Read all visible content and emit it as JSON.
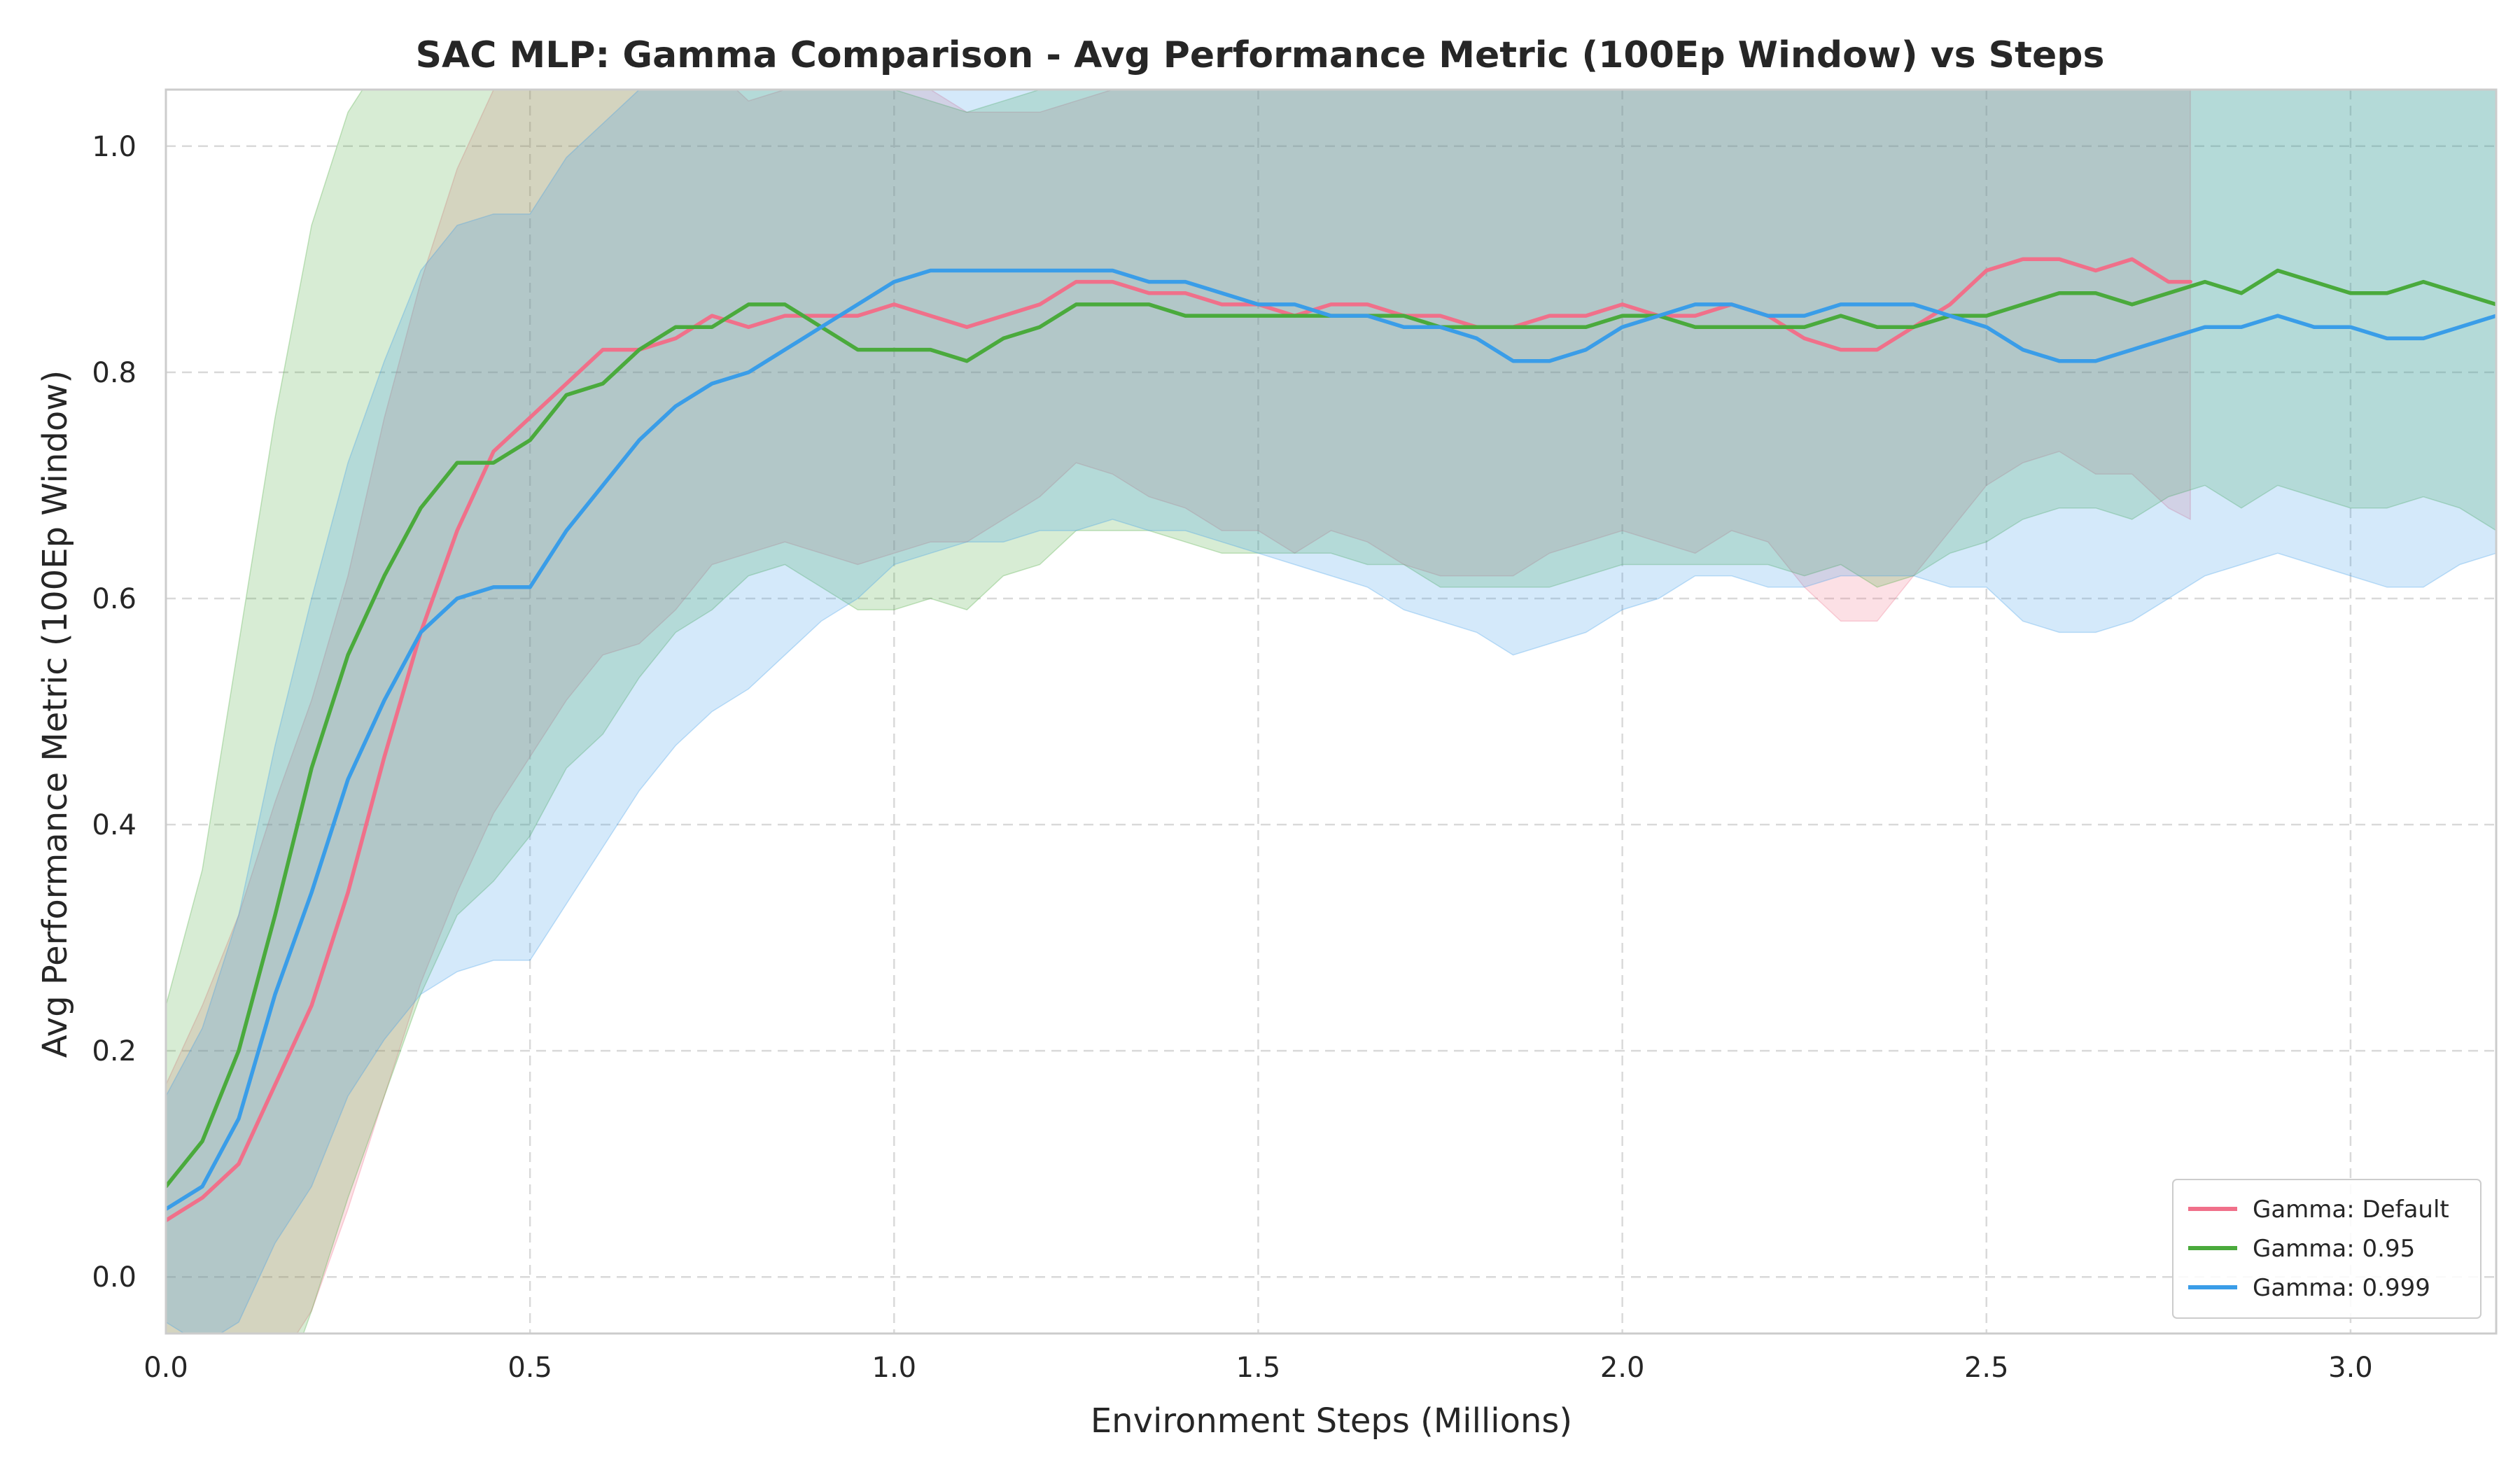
{
  "chart_data": {
    "type": "line",
    "title": "SAC MLP: Gamma Comparison - Avg Performance Metric (100Ep Window) vs Steps",
    "xlabel": "Environment Steps (Millions)",
    "ylabel": "Avg Performance Metric (100Ep Window)",
    "xlim": [
      0.0,
      3.2
    ],
    "ylim": [
      -0.05,
      1.05
    ],
    "xticks": [
      "0.0",
      "0.5",
      "1.0",
      "1.5",
      "2.0",
      "2.5",
      "3.0"
    ],
    "yticks": [
      "0.0",
      "0.2",
      "0.4",
      "0.6",
      "0.8",
      "1.0"
    ],
    "grid": true,
    "legend_position": "bottom-right",
    "series": [
      {
        "name": "Gamma: Default",
        "color": "#f0708a",
        "x": [
          0.0,
          0.05,
          0.1,
          0.15,
          0.2,
          0.25,
          0.3,
          0.35,
          0.4,
          0.45,
          0.5,
          0.55,
          0.6,
          0.65,
          0.7,
          0.75,
          0.8,
          0.85,
          0.9,
          0.95,
          1.0,
          1.05,
          1.1,
          1.15,
          1.2,
          1.25,
          1.3,
          1.35,
          1.4,
          1.45,
          1.5,
          1.55,
          1.6,
          1.65,
          1.7,
          1.75,
          1.8,
          1.85,
          1.9,
          1.95,
          2.0,
          2.05,
          2.1,
          2.15,
          2.2,
          2.25,
          2.3,
          2.35,
          2.4,
          2.45,
          2.5,
          2.55,
          2.6,
          2.65,
          2.7,
          2.75,
          2.78
        ],
        "y": [
          0.05,
          0.07,
          0.1,
          0.17,
          0.24,
          0.34,
          0.46,
          0.57,
          0.66,
          0.73,
          0.76,
          0.79,
          0.82,
          0.82,
          0.83,
          0.85,
          0.84,
          0.85,
          0.85,
          0.85,
          0.86,
          0.85,
          0.84,
          0.85,
          0.86,
          0.88,
          0.88,
          0.87,
          0.87,
          0.86,
          0.86,
          0.85,
          0.86,
          0.86,
          0.85,
          0.85,
          0.84,
          0.84,
          0.85,
          0.85,
          0.86,
          0.85,
          0.85,
          0.86,
          0.85,
          0.83,
          0.82,
          0.82,
          0.84,
          0.86,
          0.89,
          0.9,
          0.9,
          0.89,
          0.9,
          0.88,
          0.88
        ],
        "std": [
          0.12,
          0.17,
          0.22,
          0.25,
          0.27,
          0.28,
          0.3,
          0.31,
          0.32,
          0.32,
          0.3,
          0.28,
          0.27,
          0.26,
          0.24,
          0.22,
          0.2,
          0.2,
          0.21,
          0.22,
          0.22,
          0.2,
          0.19,
          0.18,
          0.17,
          0.16,
          0.17,
          0.18,
          0.19,
          0.2,
          0.2,
          0.21,
          0.2,
          0.21,
          0.22,
          0.23,
          0.22,
          0.22,
          0.21,
          0.2,
          0.2,
          0.2,
          0.21,
          0.2,
          0.2,
          0.22,
          0.24,
          0.24,
          0.22,
          0.2,
          0.19,
          0.18,
          0.17,
          0.18,
          0.19,
          0.2,
          0.21
        ]
      },
      {
        "name": "Gamma: 0.95",
        "color": "#4aaa3c",
        "x": [
          0.0,
          0.05,
          0.1,
          0.15,
          0.2,
          0.25,
          0.3,
          0.35,
          0.4,
          0.45,
          0.5,
          0.55,
          0.6,
          0.65,
          0.7,
          0.75,
          0.8,
          0.85,
          0.9,
          0.95,
          1.0,
          1.05,
          1.1,
          1.15,
          1.2,
          1.25,
          1.3,
          1.35,
          1.4,
          1.45,
          1.5,
          1.55,
          1.6,
          1.65,
          1.7,
          1.75,
          1.8,
          1.85,
          1.9,
          1.95,
          2.0,
          2.05,
          2.1,
          2.15,
          2.2,
          2.25,
          2.3,
          2.35,
          2.4,
          2.45,
          2.5,
          2.55,
          2.6,
          2.65,
          2.7,
          2.75,
          2.8,
          2.85,
          2.9,
          2.95,
          3.0,
          3.05,
          3.1,
          3.15,
          3.2
        ],
        "y": [
          0.08,
          0.12,
          0.2,
          0.32,
          0.45,
          0.55,
          0.62,
          0.68,
          0.72,
          0.72,
          0.74,
          0.78,
          0.79,
          0.82,
          0.84,
          0.84,
          0.86,
          0.86,
          0.84,
          0.82,
          0.82,
          0.82,
          0.81,
          0.83,
          0.84,
          0.86,
          0.86,
          0.86,
          0.85,
          0.85,
          0.85,
          0.85,
          0.85,
          0.85,
          0.85,
          0.84,
          0.84,
          0.84,
          0.84,
          0.84,
          0.85,
          0.85,
          0.84,
          0.84,
          0.84,
          0.84,
          0.85,
          0.84,
          0.84,
          0.85,
          0.85,
          0.86,
          0.87,
          0.87,
          0.86,
          0.87,
          0.88,
          0.87,
          0.89,
          0.88,
          0.87,
          0.87,
          0.88,
          0.87,
          0.86
        ],
        "std": [
          0.16,
          0.24,
          0.36,
          0.44,
          0.48,
          0.48,
          0.46,
          0.43,
          0.4,
          0.37,
          0.35,
          0.33,
          0.31,
          0.29,
          0.27,
          0.25,
          0.24,
          0.23,
          0.23,
          0.23,
          0.23,
          0.22,
          0.22,
          0.21,
          0.21,
          0.2,
          0.2,
          0.2,
          0.2,
          0.21,
          0.21,
          0.21,
          0.21,
          0.22,
          0.22,
          0.23,
          0.23,
          0.23,
          0.23,
          0.22,
          0.22,
          0.22,
          0.21,
          0.21,
          0.21,
          0.22,
          0.22,
          0.23,
          0.22,
          0.21,
          0.2,
          0.19,
          0.19,
          0.19,
          0.19,
          0.18,
          0.18,
          0.19,
          0.19,
          0.19,
          0.19,
          0.19,
          0.19,
          0.19,
          0.2
        ]
      },
      {
        "name": "Gamma: 0.999",
        "color": "#3a9de8",
        "x": [
          0.0,
          0.05,
          0.1,
          0.15,
          0.2,
          0.25,
          0.3,
          0.35,
          0.4,
          0.45,
          0.5,
          0.55,
          0.6,
          0.65,
          0.7,
          0.75,
          0.8,
          0.85,
          0.9,
          0.95,
          1.0,
          1.05,
          1.1,
          1.15,
          1.2,
          1.25,
          1.3,
          1.35,
          1.4,
          1.45,
          1.5,
          1.55,
          1.6,
          1.65,
          1.7,
          1.75,
          1.8,
          1.85,
          1.9,
          1.95,
          2.0,
          2.05,
          2.1,
          2.15,
          2.2,
          2.25,
          2.3,
          2.35,
          2.4,
          2.45,
          2.5,
          2.55,
          2.6,
          2.65,
          2.7,
          2.75,
          2.8,
          2.85,
          2.9,
          2.95,
          3.0,
          3.05,
          3.1,
          3.15,
          3.2
        ],
        "y": [
          0.06,
          0.08,
          0.14,
          0.25,
          0.34,
          0.44,
          0.51,
          0.57,
          0.6,
          0.61,
          0.61,
          0.66,
          0.7,
          0.74,
          0.77,
          0.79,
          0.8,
          0.82,
          0.84,
          0.86,
          0.88,
          0.89,
          0.89,
          0.89,
          0.89,
          0.89,
          0.89,
          0.88,
          0.88,
          0.87,
          0.86,
          0.86,
          0.85,
          0.85,
          0.84,
          0.84,
          0.83,
          0.81,
          0.81,
          0.82,
          0.84,
          0.85,
          0.86,
          0.86,
          0.85,
          0.85,
          0.86,
          0.86,
          0.86,
          0.85,
          0.84,
          0.82,
          0.81,
          0.81,
          0.82,
          0.83,
          0.84,
          0.84,
          0.85,
          0.84,
          0.84,
          0.83,
          0.83,
          0.84,
          0.85
        ],
        "std": [
          0.1,
          0.14,
          0.18,
          0.22,
          0.26,
          0.28,
          0.3,
          0.32,
          0.33,
          0.33,
          0.33,
          0.33,
          0.32,
          0.31,
          0.3,
          0.29,
          0.28,
          0.27,
          0.26,
          0.26,
          0.25,
          0.25,
          0.24,
          0.24,
          0.23,
          0.23,
          0.22,
          0.22,
          0.22,
          0.22,
          0.22,
          0.23,
          0.23,
          0.24,
          0.25,
          0.26,
          0.26,
          0.26,
          0.25,
          0.25,
          0.25,
          0.25,
          0.24,
          0.24,
          0.24,
          0.24,
          0.24,
          0.24,
          0.24,
          0.24,
          0.23,
          0.24,
          0.24,
          0.24,
          0.24,
          0.23,
          0.22,
          0.21,
          0.21,
          0.21,
          0.22,
          0.22,
          0.22,
          0.21,
          0.21
        ]
      }
    ]
  }
}
